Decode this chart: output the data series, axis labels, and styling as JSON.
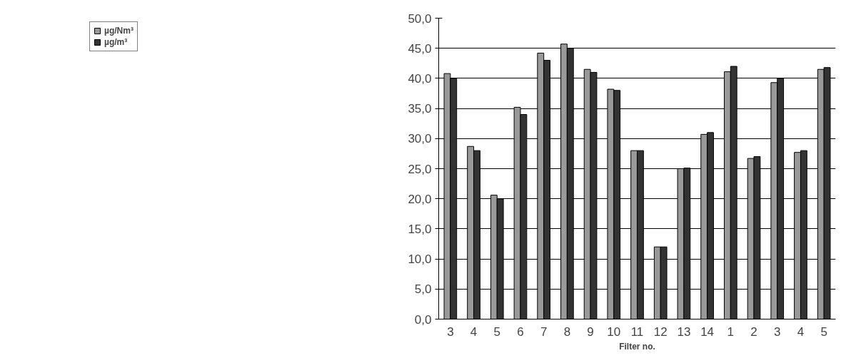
{
  "chart_data": {
    "type": "bar",
    "xlabel": "Filter no.",
    "categories": [
      "3",
      "4",
      "5",
      "6",
      "7",
      "8",
      "9",
      "10",
      "11",
      "12",
      "13",
      "14",
      "1",
      "2",
      "3",
      "4",
      "5"
    ],
    "series": [
      {
        "name": "µg/Nm³",
        "color": "#999999",
        "values": [
          40.8,
          28.7,
          20.6,
          35.2,
          44.2,
          45.7,
          41.5,
          38.2,
          28.0,
          12.0,
          25.0,
          30.7,
          41.1,
          26.7,
          39.3,
          27.7,
          41.5
        ]
      },
      {
        "name": "µg/m³",
        "color": "#333333",
        "values": [
          40.0,
          28.0,
          20.0,
          34.0,
          43.0,
          45.0,
          41.0,
          38.0,
          28.0,
          12.0,
          25.1,
          31.0,
          42.0,
          27.0,
          40.0,
          28.0,
          41.8
        ]
      }
    ],
    "ylim": [
      0,
      50
    ],
    "yticks": [
      {
        "value": 0,
        "label": "0,0"
      },
      {
        "value": 5,
        "label": "5,0"
      },
      {
        "value": 10,
        "label": "10,0"
      },
      {
        "value": 15,
        "label": "15,0"
      },
      {
        "value": 20,
        "label": "20,0"
      },
      {
        "value": 25,
        "label": "25,0"
      },
      {
        "value": 30,
        "label": "30,0"
      },
      {
        "value": 35,
        "label": "35,0"
      },
      {
        "value": 40,
        "label": "40,0"
      },
      {
        "value": 45,
        "label": "45,0"
      },
      {
        "value": 50,
        "label": "50,0"
      }
    ],
    "grid": "y",
    "legend": "top left"
  }
}
